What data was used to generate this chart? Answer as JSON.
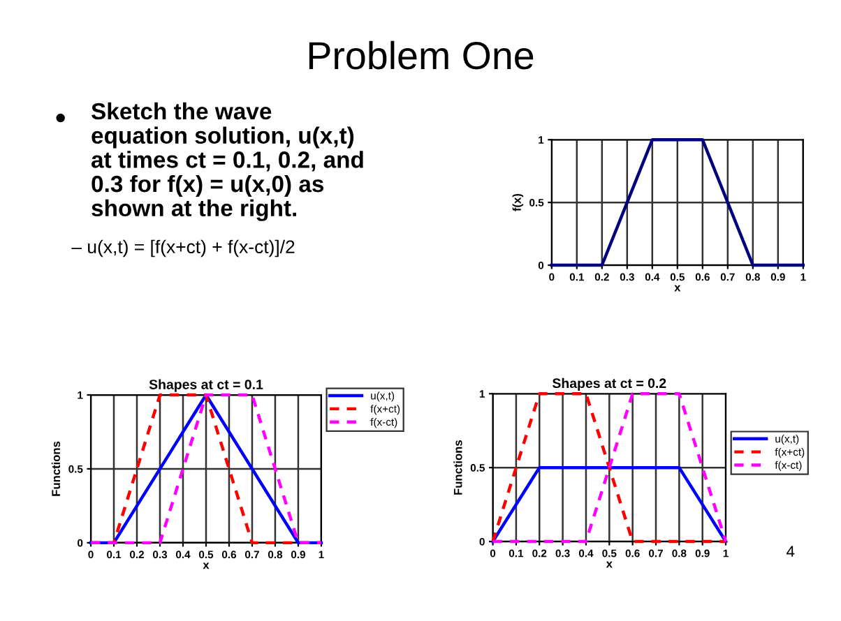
{
  "chart_data": [
    {
      "type": "other",
      "title": "Problem One",
      "annotations": [
        "Sketch the wave\nequation solution, u(x,t)\nat times ct = 0.1, 0.2, and\n0.3 for f(x) = u(x,0) as\nshown at the right.",
        "– u(x,t) = [f(x+ct) + f(x-ct)]/2",
        "4"
      ]
    },
    {
      "type": "line",
      "xlabel": "x",
      "ylabel": "f(x)",
      "xlim": [
        0,
        1
      ],
      "ylim": [
        0,
        1
      ],
      "xticks": [
        0,
        0.1,
        0.2,
        0.3,
        0.4,
        0.5,
        0.6,
        0.7,
        0.8,
        0.9,
        1
      ],
      "yticks": [
        0,
        0.5,
        1
      ],
      "grid": true,
      "legend": false,
      "series": [
        {
          "color": "#000080",
          "x": [
            0,
            0.2,
            0.4,
            0.6,
            0.8,
            1
          ],
          "values": [
            0,
            0,
            1,
            1,
            0,
            0
          ],
          "line_style": "solid"
        }
      ]
    },
    {
      "type": "line",
      "title": "Shapes at ct = 0.1",
      "xlabel": "x",
      "ylabel": "Functions",
      "xlim": [
        0,
        1
      ],
      "ylim": [
        0,
        1
      ],
      "xticks": [
        0,
        0.1,
        0.2,
        0.3,
        0.4,
        0.5,
        0.6,
        0.7,
        0.8,
        0.9,
        1
      ],
      "yticks": [
        0,
        0.5,
        1
      ],
      "grid": true,
      "legend": "top right",
      "series": [
        {
          "name": "u(x,t)",
          "color": "#0000ff",
          "x": [
            0,
            0.1,
            0.5,
            0.9,
            1
          ],
          "values": [
            0,
            0,
            1,
            0,
            0
          ],
          "line_style": "solid"
        },
        {
          "name": "f(x+ct)",
          "color": "#ff0000",
          "x": [
            0,
            0.1,
            0.3,
            0.5,
            0.7,
            1
          ],
          "values": [
            0,
            0,
            1,
            1,
            0,
            0
          ],
          "line_style": "dashed"
        },
        {
          "name": "f(x-ct)",
          "color": "#ff00ff",
          "x": [
            0,
            0.3,
            0.5,
            0.7,
            0.9,
            1
          ],
          "values": [
            0,
            0,
            1,
            1,
            0,
            0
          ],
          "line_style": "dashed"
        }
      ]
    },
    {
      "type": "line",
      "title": "Shapes at ct = 0.2",
      "xlabel": "x",
      "ylabel": "Functions",
      "xlim": [
        0,
        1
      ],
      "ylim": [
        0,
        1
      ],
      "xticks": [
        0,
        0.1,
        0.2,
        0.3,
        0.4,
        0.5,
        0.6,
        0.7,
        0.8,
        0.9,
        1
      ],
      "yticks": [
        0,
        0.5,
        1
      ],
      "grid": true,
      "legend": "right",
      "series": [
        {
          "name": "u(x,t)",
          "color": "#0000ff",
          "x": [
            0,
            0.2,
            0.8,
            1
          ],
          "values": [
            0,
            0.5,
            0.5,
            0
          ],
          "line_style": "solid"
        },
        {
          "name": "f(x+ct)",
          "color": "#ff0000",
          "x": [
            0,
            0.2,
            0.4,
            0.6,
            1
          ],
          "values": [
            0,
            1,
            1,
            0,
            0
          ],
          "line_style": "dashed"
        },
        {
          "name": "f(x-ct)",
          "color": "#ff00ff",
          "x": [
            0,
            0.4,
            0.6,
            0.8,
            1
          ],
          "values": [
            0,
            0,
            1,
            1,
            0
          ],
          "line_style": "dashed"
        }
      ]
    }
  ]
}
